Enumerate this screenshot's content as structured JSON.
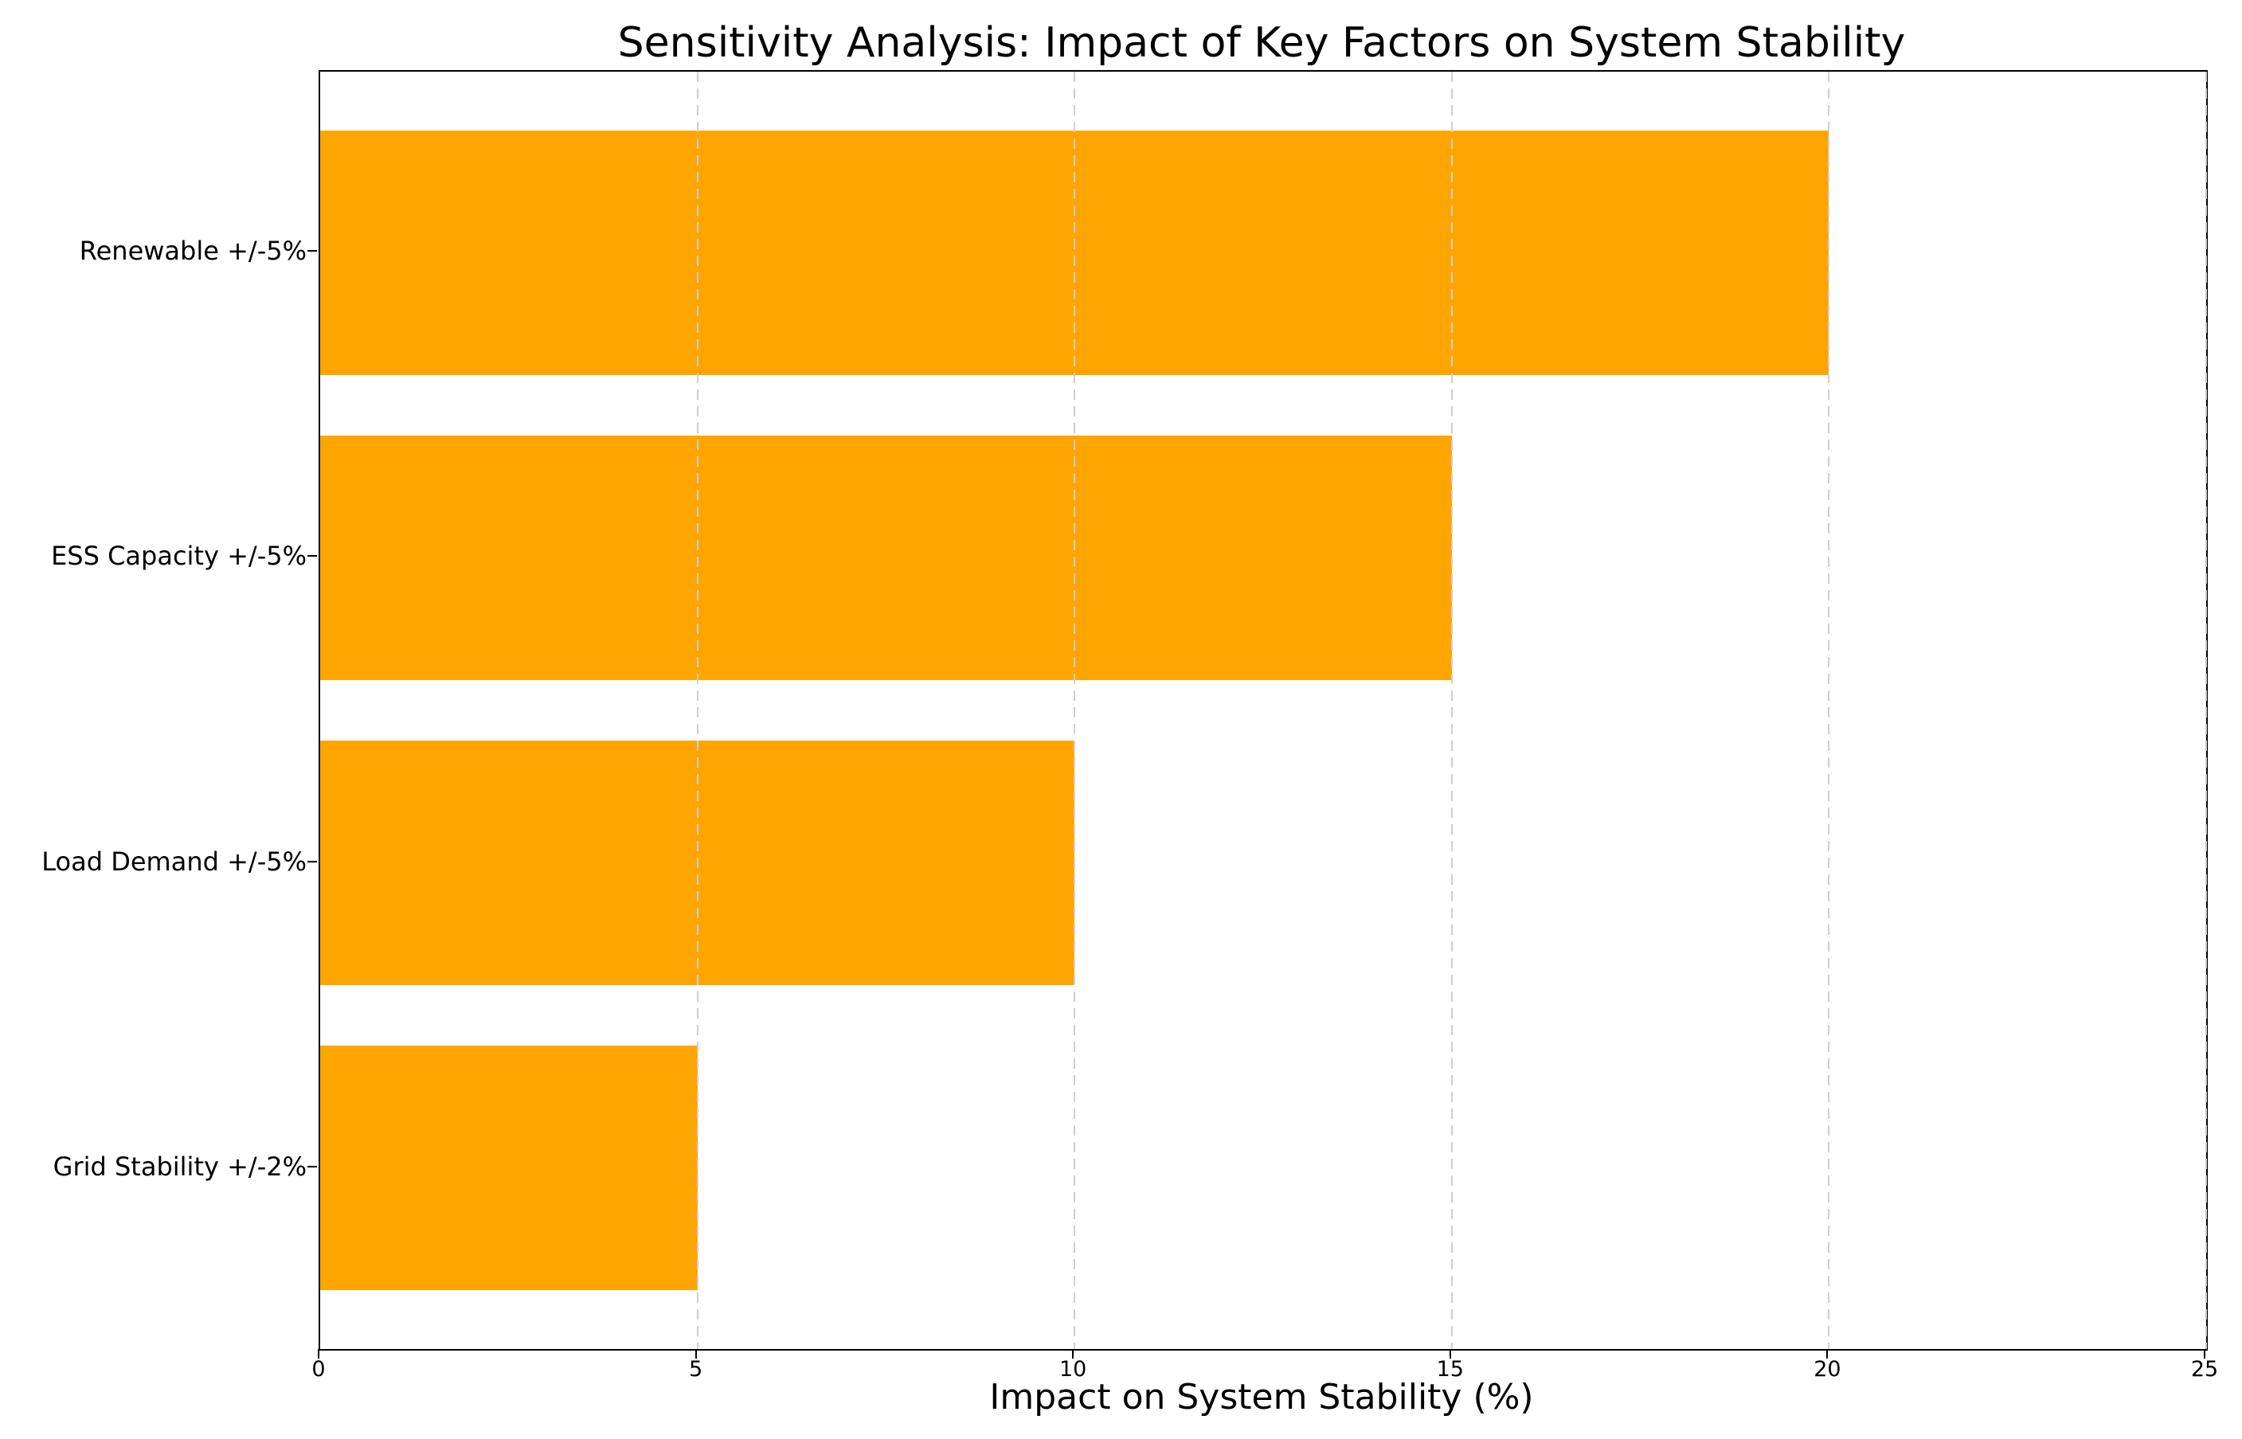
{
  "chart_data": {
    "type": "bar",
    "orientation": "horizontal",
    "title": "Sensitivity Analysis: Impact of Key Factors on System Stability",
    "xlabel": "Impact on System Stability (%)",
    "ylabel": "",
    "categories": [
      "Renewable +/-5%",
      "ESS Capacity +/-5%",
      "Load Demand +/-5%",
      "Grid Stability +/-2%"
    ],
    "values": [
      20,
      15,
      10,
      5
    ],
    "xlim": [
      0,
      25
    ],
    "xticks": [
      0,
      5,
      10,
      15,
      20,
      25
    ],
    "grid": "vertical-dashed",
    "grid_color": "#cfcfcf",
    "bar_color": "#FFA500",
    "axis_color": "#000000",
    "background_color": "#ffffff",
    "legend": "none"
  }
}
